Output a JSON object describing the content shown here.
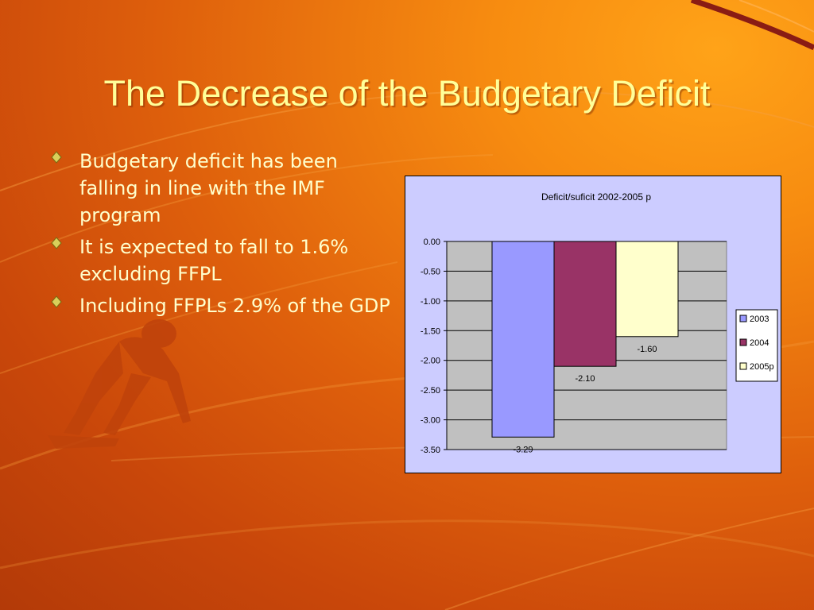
{
  "slide": {
    "title": "The Decrease of the Budgetary Deficit",
    "bullets": [
      "Budgetary deficit has been falling in line with the IMF program",
      "It is expected to fall to 1.6% excluding FFPL",
      "Including FFPLs 2.9% of the GDP"
    ],
    "icons": {
      "bullet": "diamond-bullet-icon",
      "decoration": "sprinter-silhouette"
    },
    "colors": {
      "title": "#ffff99",
      "text": "#ffffcc",
      "background": "#e0650c"
    }
  },
  "chart_data": {
    "type": "bar",
    "title": "Deficit/suficit 2002-2005 p",
    "ylim": [
      -3.5,
      0
    ],
    "yticks": [
      "0.00",
      "-0.50",
      "-1.00",
      "-1.50",
      "-2.00",
      "-2.50",
      "-3.00",
      "-3.50"
    ],
    "grid": true,
    "legend_position": "right",
    "series": [
      {
        "name": "2003",
        "values": [
          -3.29
        ],
        "label": "-3.29",
        "color": "#9999ff"
      },
      {
        "name": "2004",
        "values": [
          -2.1
        ],
        "label": "-2.10",
        "color": "#993366"
      },
      {
        "name": "2005p",
        "values": [
          -1.6
        ],
        "label": "-1.60",
        "color": "#ffffcc"
      }
    ]
  }
}
